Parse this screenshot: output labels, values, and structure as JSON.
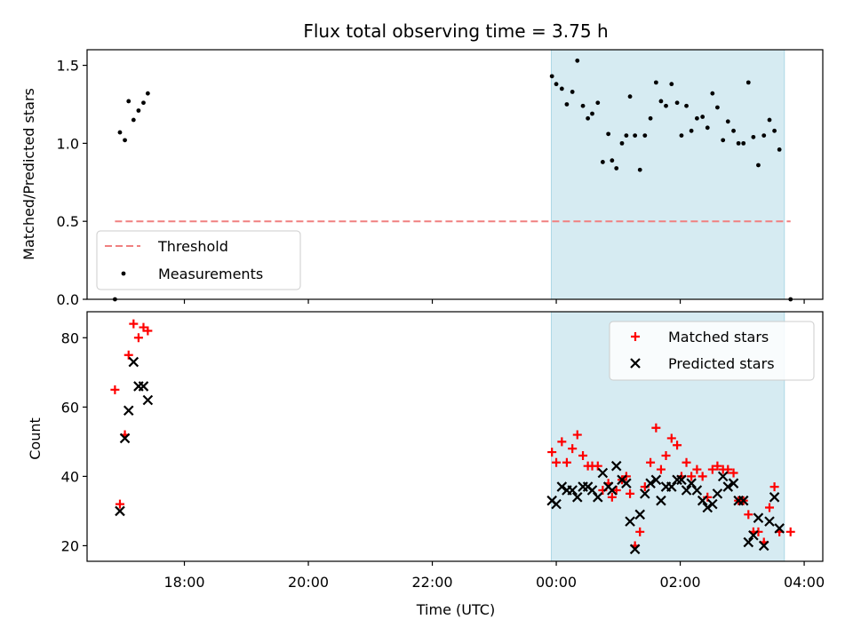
{
  "chart_data": {
    "title": "Flux total observing time = 3.75 h",
    "xlabel": "Time (UTC)",
    "x_unit": "hours from 16:00 UTC",
    "xlim": [
      16.43,
      28.3
    ],
    "xticks": [
      {
        "value": 18,
        "label": "18:00"
      },
      {
        "value": 20,
        "label": "20:00"
      },
      {
        "value": 22,
        "label": "22:00"
      },
      {
        "value": 24,
        "label": "00:00"
      },
      {
        "value": 26,
        "label": "02:00"
      },
      {
        "value": 28,
        "label": "04:00"
      }
    ],
    "shaded_span": {
      "x_start": 23.92,
      "x_end": 27.68,
      "color": "#add8e6"
    },
    "panels": [
      {
        "type": "scatter",
        "ylabel": "Matched/Predicted stars",
        "ylim": [
          0,
          1.6
        ],
        "yticks": [
          {
            "value": 0.0,
            "label": "0.0"
          },
          {
            "value": 0.5,
            "label": "0.5"
          },
          {
            "value": 1.0,
            "label": "1.0"
          },
          {
            "value": 1.5,
            "label": "1.5"
          }
        ],
        "threshold": {
          "name": "Threshold",
          "value": 0.5,
          "x_start": 16.88,
          "x_end": 27.78,
          "color": "#f08080"
        },
        "series": [
          {
            "name": "Measurements",
            "marker": "dot",
            "color": "#000000",
            "points": [
              [
                16.88,
                0.0
              ],
              [
                16.96,
                1.07
              ],
              [
                17.04,
                1.02
              ],
              [
                17.1,
                1.27
              ],
              [
                17.18,
                1.15
              ],
              [
                17.26,
                1.21
              ],
              [
                17.34,
                1.26
              ],
              [
                17.41,
                1.32
              ],
              [
                23.93,
                1.43
              ],
              [
                24.0,
                1.38
              ],
              [
                24.09,
                1.35
              ],
              [
                24.17,
                1.25
              ],
              [
                24.26,
                1.33
              ],
              [
                24.34,
                1.53
              ],
              [
                24.43,
                1.24
              ],
              [
                24.51,
                1.16
              ],
              [
                24.58,
                1.19
              ],
              [
                24.67,
                1.26
              ],
              [
                24.75,
                0.88
              ],
              [
                24.84,
                1.06
              ],
              [
                24.9,
                0.89
              ],
              [
                24.97,
                0.84
              ],
              [
                25.06,
                1.0
              ],
              [
                25.13,
                1.05
              ],
              [
                25.19,
                1.3
              ],
              [
                25.27,
                1.05
              ],
              [
                25.35,
                0.83
              ],
              [
                25.43,
                1.05
              ],
              [
                25.52,
                1.16
              ],
              [
                25.61,
                1.39
              ],
              [
                25.69,
                1.27
              ],
              [
                25.77,
                1.24
              ],
              [
                25.86,
                1.38
              ],
              [
                25.95,
                1.26
              ],
              [
                26.02,
                1.05
              ],
              [
                26.1,
                1.24
              ],
              [
                26.18,
                1.08
              ],
              [
                26.27,
                1.16
              ],
              [
                26.36,
                1.17
              ],
              [
                26.44,
                1.1
              ],
              [
                26.52,
                1.32
              ],
              [
                26.6,
                1.23
              ],
              [
                26.69,
                1.02
              ],
              [
                26.77,
                1.14
              ],
              [
                26.86,
                1.08
              ],
              [
                26.94,
                1.0
              ],
              [
                27.02,
                1.0
              ],
              [
                27.1,
                1.39
              ],
              [
                27.18,
                1.04
              ],
              [
                27.26,
                0.86
              ],
              [
                27.35,
                1.05
              ],
              [
                27.44,
                1.15
              ],
              [
                27.52,
                1.08
              ],
              [
                27.6,
                0.96
              ],
              [
                27.78,
                0.0
              ]
            ]
          }
        ],
        "legend": {
          "position": "lower-left",
          "entries": [
            "Threshold",
            "Measurements"
          ]
        }
      },
      {
        "type": "scatter",
        "ylabel": "Count",
        "ylim": [
          15.5,
          87.5
        ],
        "yticks": [
          {
            "value": 20,
            "label": "20"
          },
          {
            "value": 40,
            "label": "40"
          },
          {
            "value": 60,
            "label": "60"
          },
          {
            "value": 80,
            "label": "80"
          }
        ],
        "series": [
          {
            "name": "Matched stars",
            "marker": "plus",
            "color": "#ff0000",
            "points": [
              [
                16.88,
                65
              ],
              [
                16.96,
                32
              ],
              [
                17.04,
                52
              ],
              [
                17.1,
                75
              ],
              [
                17.18,
                84
              ],
              [
                17.26,
                80
              ],
              [
                17.34,
                83
              ],
              [
                17.41,
                82
              ],
              [
                23.93,
                47
              ],
              [
                24.0,
                44
              ],
              [
                24.09,
                50
              ],
              [
                24.17,
                44
              ],
              [
                24.26,
                48
              ],
              [
                24.34,
                52
              ],
              [
                24.43,
                46
              ],
              [
                24.51,
                43
              ],
              [
                24.58,
                43
              ],
              [
                24.67,
                43
              ],
              [
                24.75,
                36
              ],
              [
                24.84,
                38
              ],
              [
                24.9,
                34
              ],
              [
                24.97,
                36
              ],
              [
                25.06,
                39
              ],
              [
                25.13,
                40
              ],
              [
                25.19,
                35
              ],
              [
                25.27,
                20
              ],
              [
                25.35,
                24
              ],
              [
                25.43,
                37
              ],
              [
                25.52,
                44
              ],
              [
                25.61,
                54
              ],
              [
                25.69,
                42
              ],
              [
                25.77,
                46
              ],
              [
                25.86,
                51
              ],
              [
                25.95,
                49
              ],
              [
                26.02,
                40
              ],
              [
                26.1,
                44
              ],
              [
                26.18,
                40
              ],
              [
                26.27,
                42
              ],
              [
                26.36,
                40
              ],
              [
                26.44,
                34
              ],
              [
                26.52,
                42
              ],
              [
                26.6,
                43
              ],
              [
                26.69,
                42
              ],
              [
                26.77,
                42
              ],
              [
                26.86,
                41
              ],
              [
                26.94,
                33
              ],
              [
                27.02,
                33
              ],
              [
                27.1,
                29
              ],
              [
                27.18,
                24
              ],
              [
                27.26,
                24
              ],
              [
                27.35,
                21
              ],
              [
                27.44,
                31
              ],
              [
                27.52,
                37
              ],
              [
                27.6,
                24
              ],
              [
                27.78,
                24
              ]
            ]
          },
          {
            "name": "Predicted stars",
            "marker": "x",
            "color": "#000000",
            "points": [
              [
                16.96,
                30
              ],
              [
                17.04,
                51
              ],
              [
                17.1,
                59
              ],
              [
                17.18,
                73
              ],
              [
                17.26,
                66
              ],
              [
                17.34,
                66
              ],
              [
                17.41,
                62
              ],
              [
                23.93,
                33
              ],
              [
                24.0,
                32
              ],
              [
                24.09,
                37
              ],
              [
                24.17,
                36
              ],
              [
                24.26,
                36
              ],
              [
                24.34,
                34
              ],
              [
                24.43,
                37
              ],
              [
                24.51,
                37
              ],
              [
                24.58,
                36
              ],
              [
                24.67,
                34
              ],
              [
                24.75,
                41
              ],
              [
                24.84,
                37
              ],
              [
                24.9,
                36
              ],
              [
                24.97,
                43
              ],
              [
                25.06,
                39
              ],
              [
                25.13,
                38
              ],
              [
                25.19,
                27
              ],
              [
                25.27,
                19
              ],
              [
                25.35,
                29
              ],
              [
                25.43,
                35
              ],
              [
                25.52,
                38
              ],
              [
                25.61,
                39
              ],
              [
                25.69,
                33
              ],
              [
                25.77,
                37
              ],
              [
                25.86,
                37
              ],
              [
                25.95,
                39
              ],
              [
                26.02,
                39
              ],
              [
                26.1,
                36
              ],
              [
                26.18,
                38
              ],
              [
                26.27,
                36
              ],
              [
                26.36,
                33
              ],
              [
                26.44,
                31
              ],
              [
                26.52,
                32
              ],
              [
                26.6,
                35
              ],
              [
                26.69,
                40
              ],
              [
                26.77,
                37
              ],
              [
                26.86,
                38
              ],
              [
                26.94,
                33
              ],
              [
                27.02,
                33
              ],
              [
                27.1,
                21
              ],
              [
                27.18,
                23
              ],
              [
                27.26,
                28
              ],
              [
                27.35,
                20
              ],
              [
                27.44,
                27
              ],
              [
                27.52,
                34
              ],
              [
                27.6,
                25
              ]
            ]
          }
        ],
        "legend": {
          "position": "top-right",
          "entries": [
            "Matched stars",
            "Predicted stars"
          ]
        }
      }
    ]
  }
}
